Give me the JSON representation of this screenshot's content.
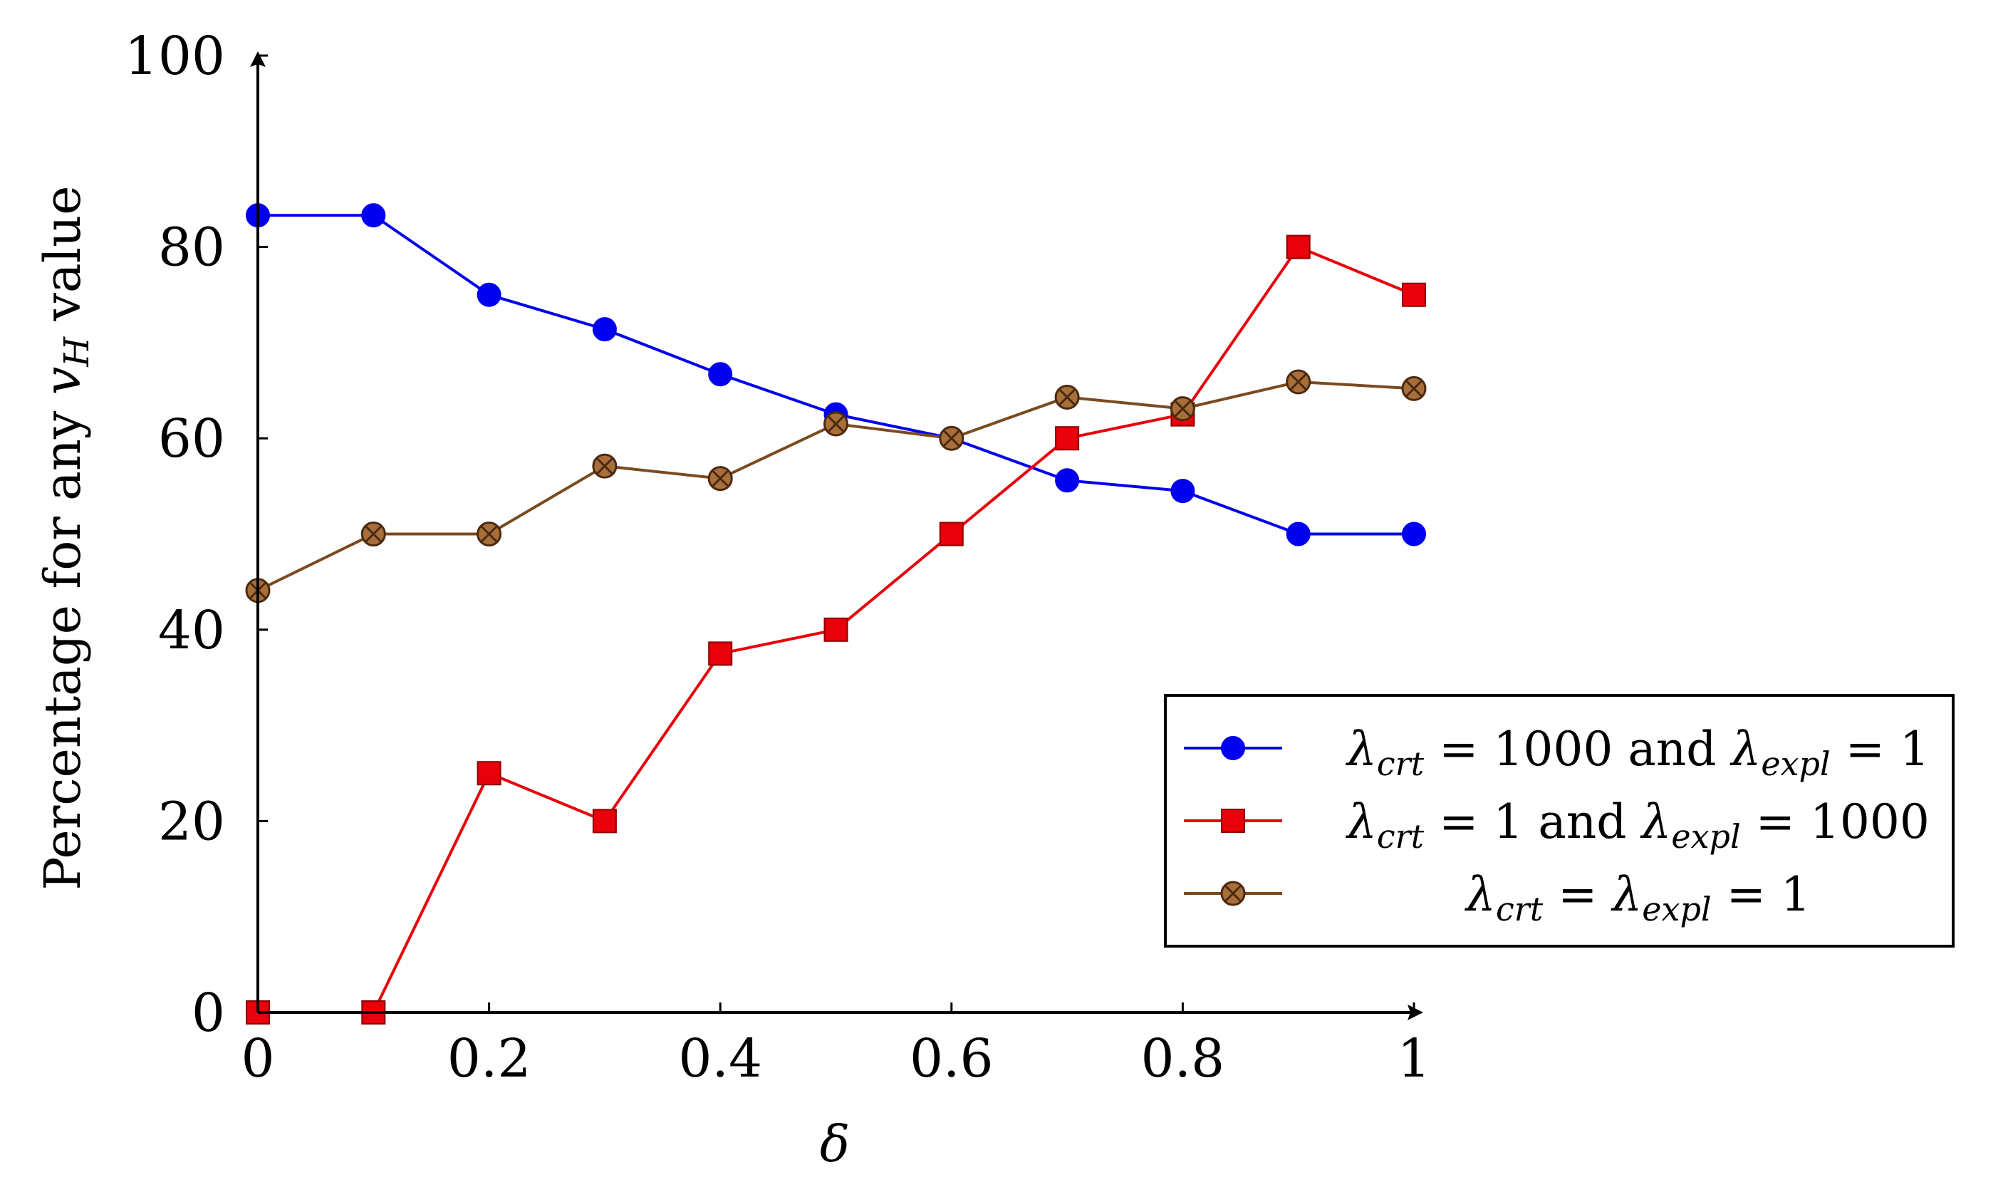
{
  "chart_data": {
    "type": "line",
    "title": "",
    "xlabel": "δ",
    "ylabel": "Percentage for any v_H value",
    "ylabel_parts": {
      "prefix": "Percentage for any ",
      "var": "v",
      "sub": "H",
      "suffix": " value"
    },
    "xlim": [
      0,
      1
    ],
    "ylim": [
      0,
      100
    ],
    "x_ticks": [
      0,
      0.2,
      0.4,
      0.6,
      0.8,
      1
    ],
    "x_tick_labels": [
      "0",
      "0.2",
      "0.4",
      "0.6",
      "0.8",
      "1"
    ],
    "y_ticks": [
      0,
      20,
      40,
      60,
      80,
      100
    ],
    "y_tick_labels": [
      "0",
      "20",
      "40",
      "60",
      "80",
      "100"
    ],
    "x": [
      0,
      0.1,
      0.2,
      0.3,
      0.4,
      0.5,
      0.6,
      0.7,
      0.8,
      0.9,
      1.0
    ],
    "legend_position": "right",
    "series": [
      {
        "name": "λcrt = 1000 and λexpl = 1",
        "color": "#0000ee",
        "marker": "circle",
        "values": [
          83.3,
          83.3,
          75,
          71.4,
          66.7,
          62.5,
          60,
          55.6,
          54.5,
          50,
          50
        ],
        "legend": {
          "l1": "λ",
          "s1": "crt",
          "mid": " = 1000 and ",
          "l2": "λ",
          "s2": "expl",
          "tail": " = 1"
        }
      },
      {
        "name": "λcrt = 1 and λexpl = 1000",
        "color": "#e8000b",
        "marker": "square",
        "values": [
          0,
          0,
          25,
          20,
          37.5,
          40,
          50,
          60,
          62.5,
          80,
          75
        ],
        "legend": {
          "l1": "λ",
          "s1": "crt",
          "mid": " = 1 and ",
          "l2": "λ",
          "s2": "expl",
          "tail": " = 1000"
        }
      },
      {
        "name": "λcrt = λexpl = 1",
        "color": "#7a4a1f",
        "marker": "otimes",
        "values": [
          44.1,
          50,
          50,
          57.1,
          55.8,
          61.5,
          60,
          64.3,
          63.1,
          65.9,
          65.2
        ],
        "legend": {
          "l1": "λ",
          "s1": "crt",
          "mid": " = ",
          "l2": "λ",
          "s2": "expl",
          "tail": " = 1"
        }
      }
    ]
  }
}
